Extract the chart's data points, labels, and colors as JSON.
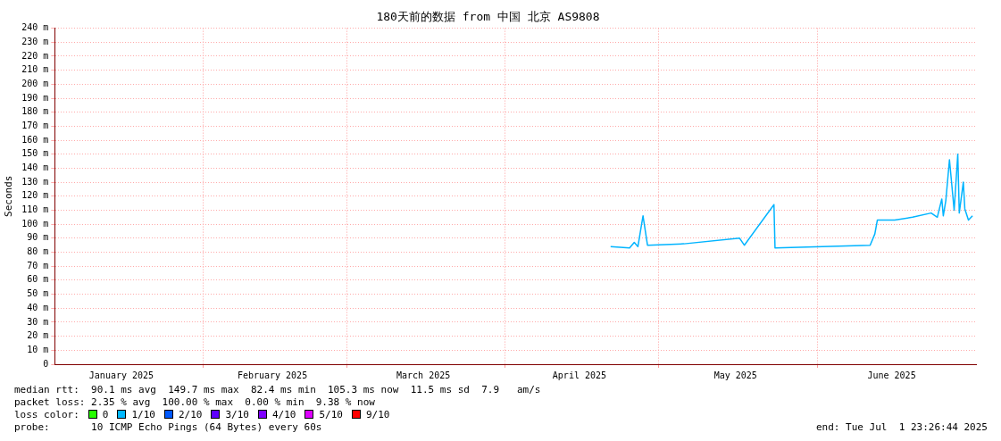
{
  "chart_data": {
    "type": "line",
    "title": "180天前的数据 from 中国 北京 AS9808",
    "ylabel": "Seconds",
    "x": [
      "2025-04-21T14:00",
      "2025-04-25T07:00",
      "2025-04-26T05:00",
      "2025-04-26T22:00",
      "2025-04-27T22:00",
      "2025-04-28T19:00",
      "2025-05-05T22:00",
      "2025-05-16T19:00",
      "2025-05-17T17:00",
      "2025-05-23T12:00",
      "2025-05-23T17:00",
      "2025-06-11T07:00",
      "2025-06-12T05:00",
      "2025-06-12T17:00",
      "2025-06-16T02:00",
      "2025-06-19T14:00",
      "2025-06-23T05:00",
      "2025-06-24T10:00",
      "2025-06-25T07:00",
      "2025-06-25T14:00",
      "2025-06-26T02:00",
      "2025-06-26T19:00",
      "2025-06-27T17:00",
      "2025-06-28T10:00",
      "2025-06-28T17:00",
      "2025-06-29T12:00",
      "2025-06-29T19:00",
      "2025-06-30T12:00",
      "2025-07-01T07:00"
    ],
    "series": [
      {
        "color": "#00b4ff",
        "values": [
          84,
          83,
          87,
          84,
          106,
          85,
          86,
          90,
          85,
          114,
          83,
          85,
          93,
          103,
          103,
          105,
          108,
          105,
          118,
          106,
          117,
          146,
          110,
          150,
          108,
          130,
          111,
          103,
          106
        ]
      }
    ],
    "xlim": [
      "2025-01-02T23:26",
      "2025-07-01T23:26"
    ],
    "xticks": [
      {
        "value": "2025-01-16",
        "label": "January 2025"
      },
      {
        "value": "2025-02-01",
        "label": null
      },
      {
        "value": "2025-02-14T12:00",
        "label": "February 2025"
      },
      {
        "value": "2025-03-01",
        "label": null
      },
      {
        "value": "2025-03-16",
        "label": "March 2025"
      },
      {
        "value": "2025-04-01",
        "label": null
      },
      {
        "value": "2025-04-15T12:00",
        "label": "April 2025"
      },
      {
        "value": "2025-05-01",
        "label": null
      },
      {
        "value": "2025-05-16",
        "label": "May 2025"
      },
      {
        "value": "2025-06-01",
        "label": null
      },
      {
        "value": "2025-06-15T12:00",
        "label": "June 2025"
      }
    ],
    "ylim": [
      0,
      240
    ],
    "yticks": [
      {
        "value": 0,
        "label": "0"
      },
      {
        "value": 10,
        "label": "10 m"
      },
      {
        "value": 20,
        "label": "20 m"
      },
      {
        "value": 30,
        "label": "30 m"
      },
      {
        "value": 40,
        "label": "40 m"
      },
      {
        "value": 50,
        "label": "50 m"
      },
      {
        "value": 60,
        "label": "60 m"
      },
      {
        "value": 70,
        "label": "70 m"
      },
      {
        "value": 80,
        "label": "80 m"
      },
      {
        "value": 90,
        "label": "90 m"
      },
      {
        "value": 100,
        "label": "100 m"
      },
      {
        "value": 110,
        "label": "110 m"
      },
      {
        "value": 120,
        "label": "120 m"
      },
      {
        "value": 130,
        "label": "130 m"
      },
      {
        "value": 140,
        "label": "140 m"
      },
      {
        "value": 150,
        "label": "150 m"
      },
      {
        "value": 160,
        "label": "160 m"
      },
      {
        "value": 170,
        "label": "170 m"
      },
      {
        "value": 180,
        "label": "180 m"
      },
      {
        "value": 190,
        "label": "190 m"
      },
      {
        "value": 200,
        "label": "200 m"
      },
      {
        "value": 210,
        "label": "210 m"
      },
      {
        "value": 220,
        "label": "220 m"
      },
      {
        "value": 230,
        "label": "230 m"
      },
      {
        "value": 240,
        "label": "240 m"
      }
    ],
    "grid": true,
    "legend": false,
    "marker": "none",
    "line_style": "solid",
    "annotations": [
      "median rtt:  90.1 ms avg  149.7 ms max  82.4 ms min  105.3 ms now  11.5 ms sd  7.9   am/s",
      "packet loss: 2.35 % avg  100.00 % max  0.00 % min  9.38 % now",
      "loss color:",
      "0",
      "1/10",
      "2/10",
      "3/10",
      "4/10",
      "5/10",
      "9/10",
      "probe:       10 ICMP Echo Pings (64 Bytes) every 60s",
      "end: Tue Jul  1 23:26:44 2025"
    ]
  }
}
